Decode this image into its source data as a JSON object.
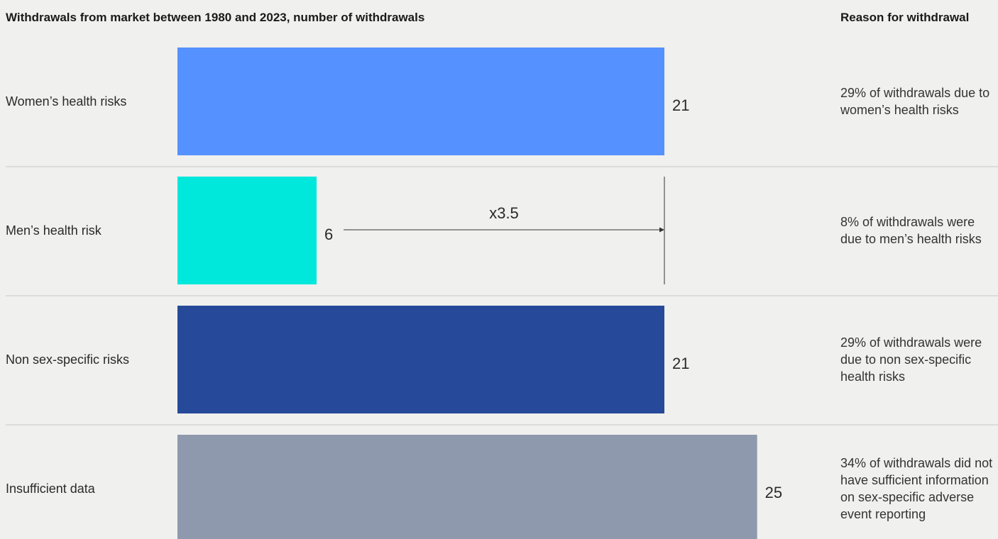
{
  "header": {
    "title": "Withdrawals from market between 1980 and 2023, number of withdrawals",
    "reason_title": "Reason for withdrawal"
  },
  "chart_data": {
    "type": "bar",
    "orientation": "horizontal",
    "title": "Withdrawals from market between 1980 and 2023, number of withdrawals",
    "categories": [
      "Women’s health risks",
      "Men’s health risk",
      "Non sex-specific risks",
      "Insufficient data"
    ],
    "values": [
      21,
      6,
      21,
      25
    ],
    "colors": [
      "#5591ff",
      "#00e8dc",
      "#264a99",
      "#8e99ad"
    ],
    "xlim": [
      0,
      35
    ],
    "annotation": {
      "label": "x3.5",
      "from_category": "Men’s health risk",
      "from_value": 6,
      "to_value": 21
    },
    "grid": false,
    "legend": "none"
  },
  "reasons": [
    "29% of withdrawals due to women’s health risks",
    "8% of withdrawals were due to men’s health risks",
    "29% of withdrawals were due to non sex-specific health risks",
    "34% of withdrawals did not have sufficient information on sex-specific adverse event reporting"
  ]
}
